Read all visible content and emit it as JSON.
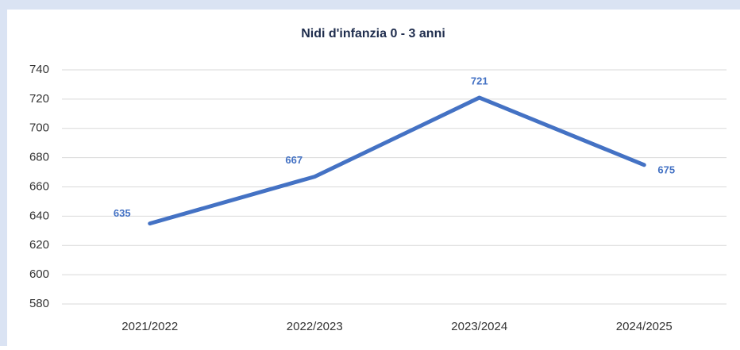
{
  "chart_data": {
    "type": "line",
    "title": "Nidi d'infanzia 0 - 3 anni",
    "categories": [
      "2021/2022",
      "2022/2023",
      "2023/2024",
      "2024/2025"
    ],
    "series": [
      {
        "name": "Nidi d'infanzia 0 - 3 anni",
        "color": "#4472c4",
        "values": [
          635,
          667,
          721,
          675
        ]
      }
    ],
    "ylim": [
      580,
      740
    ],
    "yticks": [
      580,
      600,
      620,
      640,
      660,
      680,
      700,
      720,
      740
    ],
    "grid": true
  }
}
